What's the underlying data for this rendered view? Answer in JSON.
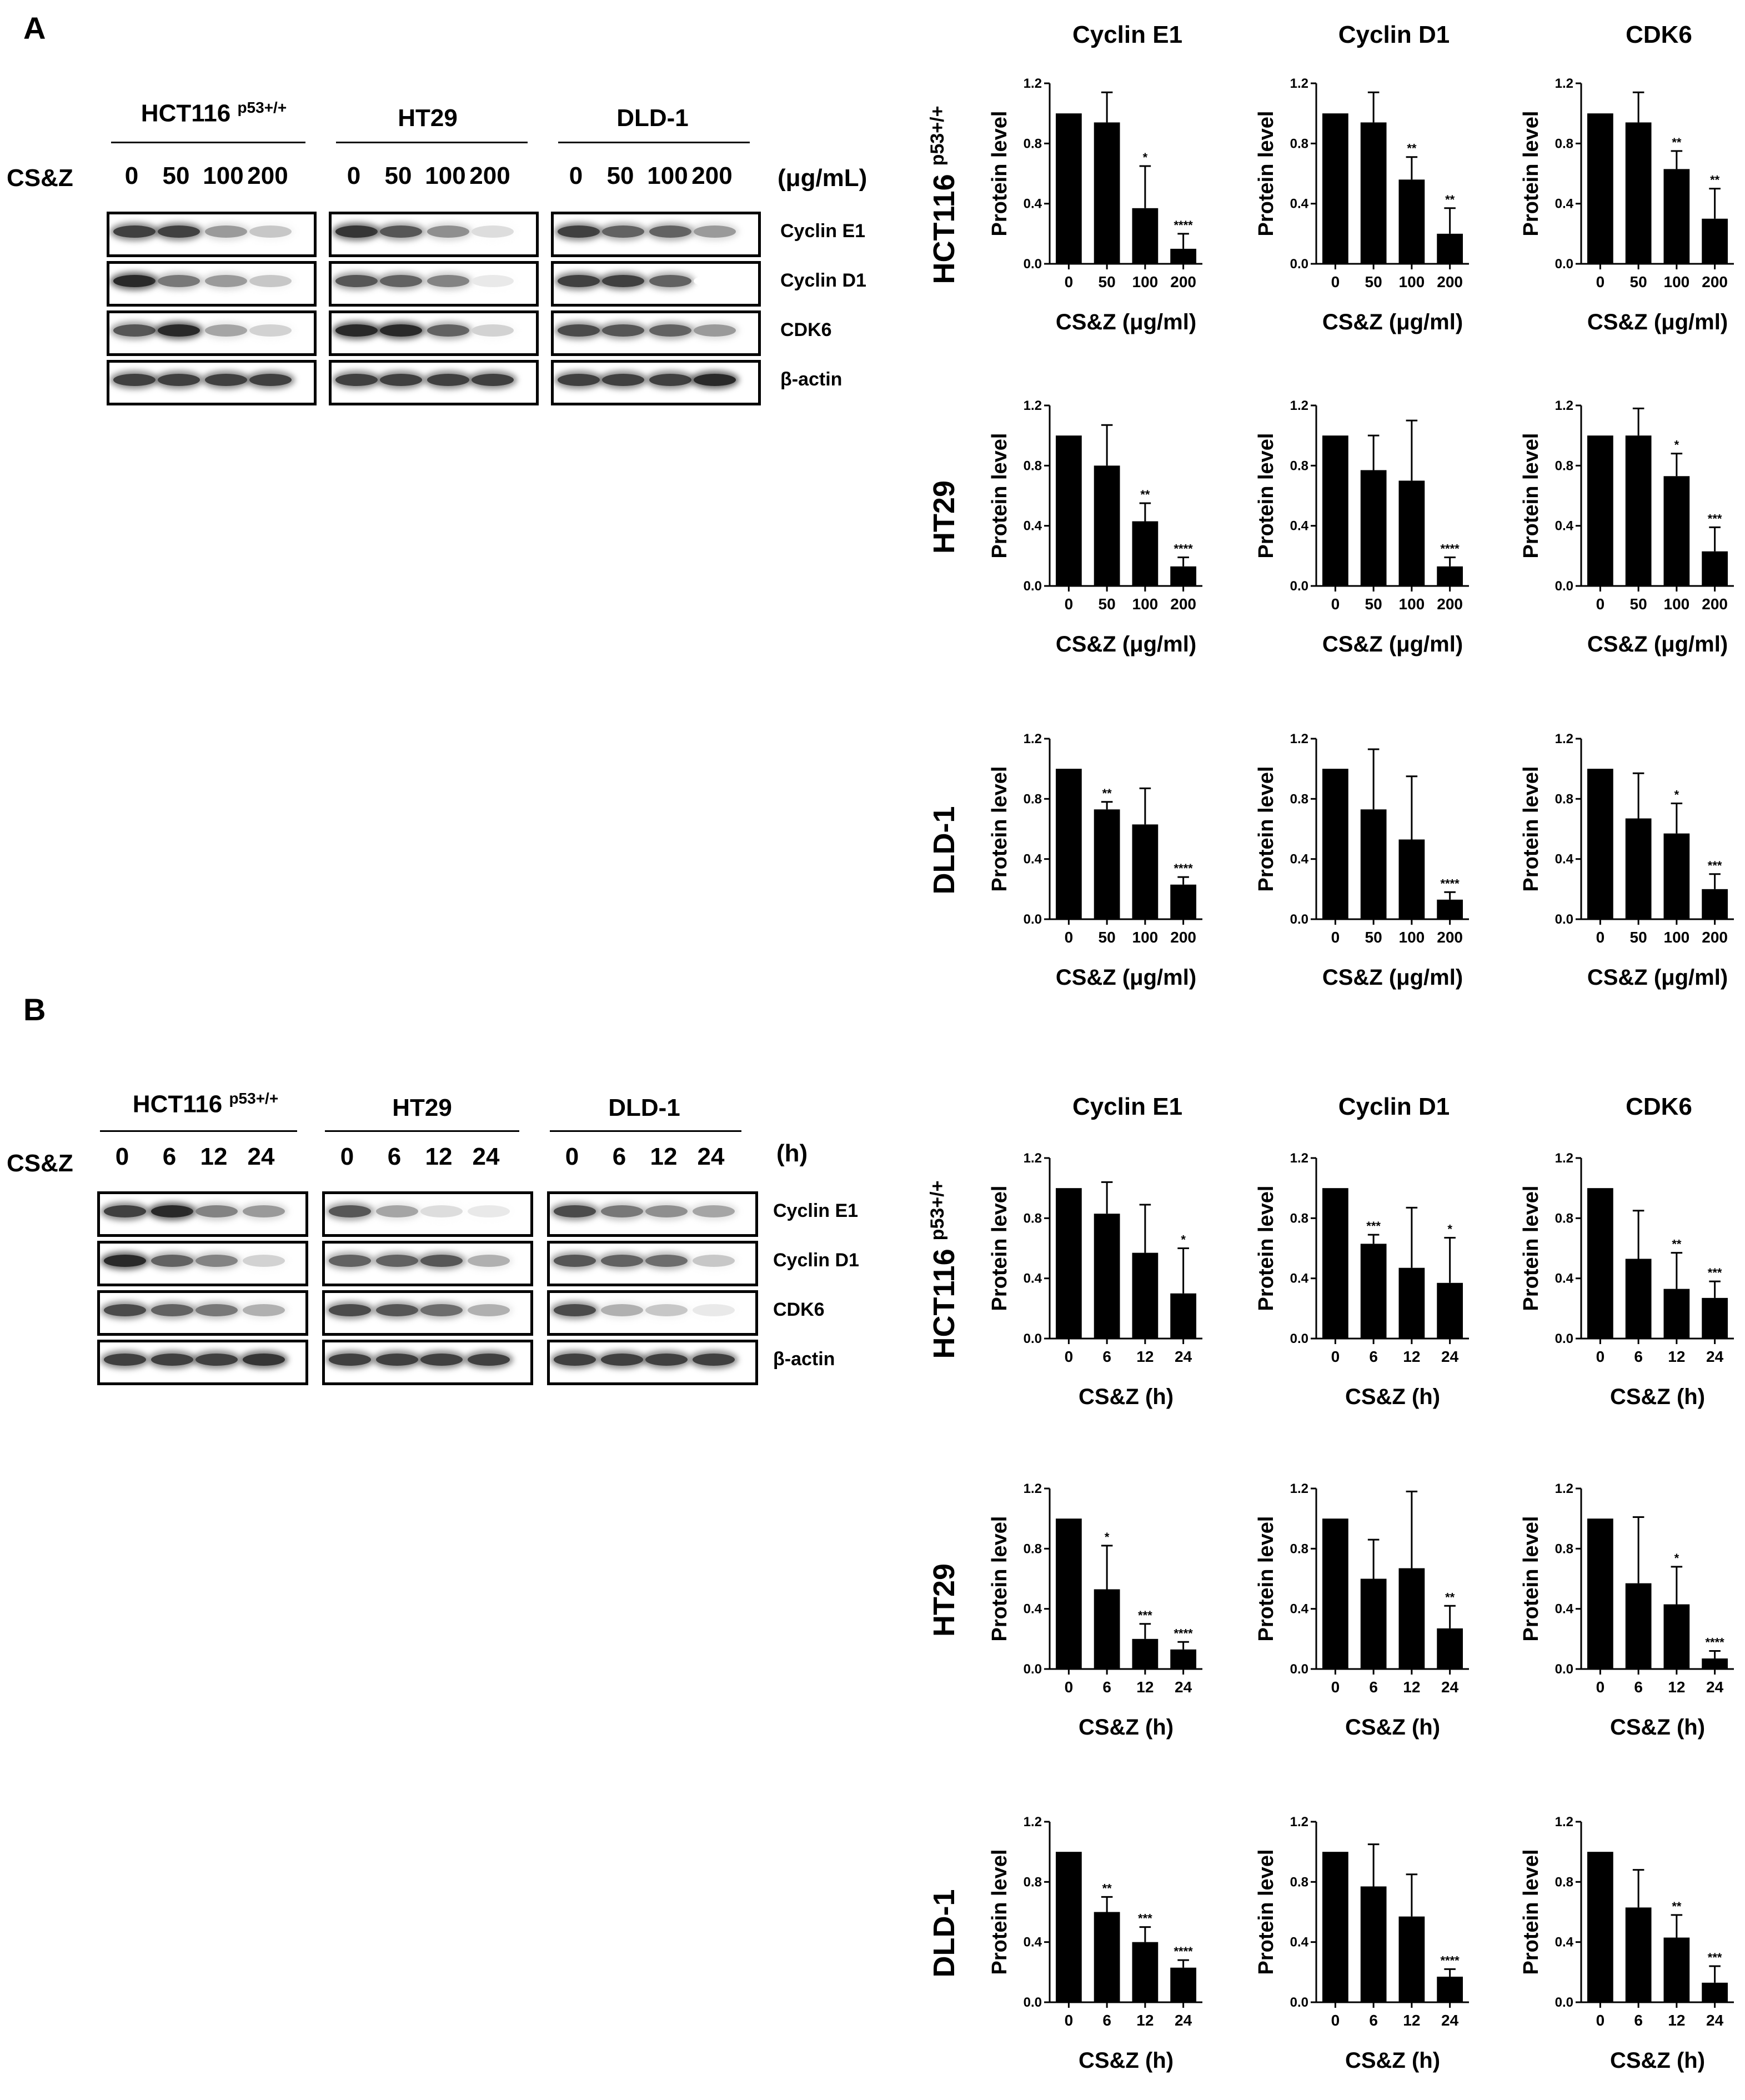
{
  "panel_a": {
    "letter": "A",
    "treatment_label": "CS&Z",
    "unit": "(μg/mL)",
    "cell_lines": [
      {
        "name": "HCT116",
        "superscript": "p53+/+"
      },
      {
        "name": "HT29",
        "superscript": ""
      },
      {
        "name": "DLD-1",
        "superscript": ""
      }
    ],
    "doses": [
      "0",
      "50",
      "100",
      "200"
    ],
    "proteins": [
      "Cyclin E1",
      "Cyclin D1",
      "CDK6",
      "β-actin"
    ],
    "chart_titles": [
      "Cyclin E1",
      "Cyclin D1",
      "CDK6"
    ],
    "row_labels": [
      {
        "name": "HCT116",
        "superscript": "p53+/+"
      },
      {
        "name": "HT29",
        "superscript": ""
      },
      {
        "name": "DLD-1",
        "superscript": ""
      }
    ],
    "blot_intensity": [
      [
        [
          0.85,
          0.85,
          0.45,
          0.25
        ],
        [
          0.95,
          0.6,
          0.45,
          0.25
        ],
        [
          0.75,
          0.95,
          0.4,
          0.2
        ],
        [
          0.85,
          0.85,
          0.85,
          0.85
        ]
      ],
      [
        [
          0.9,
          0.75,
          0.5,
          0.15
        ],
        [
          0.75,
          0.7,
          0.55,
          0.1
        ],
        [
          0.95,
          0.95,
          0.7,
          0.2
        ],
        [
          0.85,
          0.85,
          0.85,
          0.85
        ]
      ],
      [
        [
          0.85,
          0.7,
          0.7,
          0.45
        ],
        [
          0.85,
          0.85,
          0.7,
          0.0
        ],
        [
          0.8,
          0.75,
          0.7,
          0.45
        ],
        [
          0.85,
          0.85,
          0.85,
          0.95
        ]
      ]
    ]
  },
  "panel_b": {
    "letter": "B",
    "treatment_label": "CS&Z",
    "unit": "(h)",
    "cell_lines": [
      {
        "name": "HCT116",
        "superscript": "p53+/+"
      },
      {
        "name": "HT29",
        "superscript": ""
      },
      {
        "name": "DLD-1",
        "superscript": ""
      }
    ],
    "times": [
      "0",
      "6",
      "12",
      "24"
    ],
    "proteins": [
      "Cyclin E1",
      "Cyclin D1",
      "CDK6",
      "β-actin"
    ],
    "chart_titles": [
      "Cyclin E1",
      "Cyclin D1",
      "CDK6"
    ],
    "row_labels": [
      {
        "name": "HCT116",
        "superscript": "p53+/+"
      },
      {
        "name": "HT29",
        "superscript": ""
      },
      {
        "name": "DLD-1",
        "superscript": ""
      }
    ],
    "blot_intensity": [
      [
        [
          0.85,
          0.95,
          0.55,
          0.45
        ],
        [
          0.95,
          0.7,
          0.55,
          0.2
        ],
        [
          0.8,
          0.7,
          0.6,
          0.35
        ],
        [
          0.85,
          0.85,
          0.85,
          0.9
        ]
      ],
      [
        [
          0.75,
          0.4,
          0.15,
          0.1
        ],
        [
          0.7,
          0.7,
          0.75,
          0.35
        ],
        [
          0.8,
          0.75,
          0.65,
          0.35
        ],
        [
          0.85,
          0.85,
          0.85,
          0.85
        ]
      ],
      [
        [
          0.8,
          0.6,
          0.5,
          0.4
        ],
        [
          0.75,
          0.7,
          0.65,
          0.25
        ],
        [
          0.8,
          0.35,
          0.25,
          0.1
        ],
        [
          0.85,
          0.85,
          0.85,
          0.85
        ]
      ]
    ]
  },
  "chart_data": [
    {
      "type": "bar",
      "panel": "A",
      "cell_line": "HCT116 p53+/+",
      "title": "Cyclin E1",
      "xlabel": "CS&Z (μg/ml)",
      "ylabel": "Protein level",
      "categories": [
        "0",
        "50",
        "100",
        "200"
      ],
      "values": [
        1.0,
        0.94,
        0.37,
        0.1
      ],
      "errors": [
        0,
        0.2,
        0.28,
        0.1
      ],
      "significance": [
        "",
        "",
        "*",
        "****"
      ],
      "ylim": [
        0,
        1.2
      ],
      "yticks": [
        "0.0",
        "0.4",
        "0.8",
        "1.2"
      ]
    },
    {
      "type": "bar",
      "panel": "A",
      "cell_line": "HCT116 p53+/+",
      "title": "Cyclin D1",
      "xlabel": "CS&Z (μg/ml)",
      "ylabel": "Protein level",
      "categories": [
        "0",
        "50",
        "100",
        "200"
      ],
      "values": [
        1.0,
        0.94,
        0.56,
        0.2
      ],
      "errors": [
        0,
        0.2,
        0.15,
        0.17
      ],
      "significance": [
        "",
        "",
        "**",
        "**"
      ],
      "ylim": [
        0,
        1.2
      ],
      "yticks": [
        "0.0",
        "0.4",
        "0.8",
        "1.2"
      ]
    },
    {
      "type": "bar",
      "panel": "A",
      "cell_line": "HCT116 p53+/+",
      "title": "CDK6",
      "xlabel": "CS&Z (μg/ml)",
      "ylabel": "Protein level",
      "categories": [
        "0",
        "50",
        "100",
        "200"
      ],
      "values": [
        1.0,
        0.94,
        0.63,
        0.3
      ],
      "errors": [
        0,
        0.2,
        0.12,
        0.2
      ],
      "significance": [
        "",
        "",
        "**",
        "**"
      ],
      "ylim": [
        0,
        1.2
      ],
      "yticks": [
        "0.0",
        "0.4",
        "0.8",
        "1.2"
      ]
    },
    {
      "type": "bar",
      "panel": "A",
      "cell_line": "HT29",
      "title": "Cyclin E1",
      "xlabel": "CS&Z (μg/ml)",
      "ylabel": "Protein level",
      "categories": [
        "0",
        "50",
        "100",
        "200"
      ],
      "values": [
        1.0,
        0.8,
        0.43,
        0.13
      ],
      "errors": [
        0,
        0.27,
        0.12,
        0.06
      ],
      "significance": [
        "",
        "",
        "**",
        "****"
      ],
      "ylim": [
        0,
        1.2
      ],
      "yticks": [
        "0.0",
        "0.4",
        "0.8",
        "1.2"
      ]
    },
    {
      "type": "bar",
      "panel": "A",
      "cell_line": "HT29",
      "title": "Cyclin D1",
      "xlabel": "CS&Z (μg/ml)",
      "ylabel": "Protein level",
      "categories": [
        "0",
        "50",
        "100",
        "200"
      ],
      "values": [
        1.0,
        0.77,
        0.7,
        0.13
      ],
      "errors": [
        0,
        0.23,
        0.4,
        0.06
      ],
      "significance": [
        "",
        "",
        "",
        "****"
      ],
      "ylim": [
        0,
        1.2
      ],
      "yticks": [
        "0.0",
        "0.4",
        "0.8",
        "1.2"
      ]
    },
    {
      "type": "bar",
      "panel": "A",
      "cell_line": "HT29",
      "title": "CDK6",
      "xlabel": "CS&Z (μg/ml)",
      "ylabel": "Protein level",
      "categories": [
        "0",
        "50",
        "100",
        "200"
      ],
      "values": [
        1.0,
        1.0,
        0.73,
        0.23
      ],
      "errors": [
        0,
        0.18,
        0.15,
        0.16
      ],
      "significance": [
        "",
        "",
        "*",
        "***"
      ],
      "ylim": [
        0,
        1.2
      ],
      "yticks": [
        "0.0",
        "0.4",
        "0.8",
        "1.2"
      ]
    },
    {
      "type": "bar",
      "panel": "A",
      "cell_line": "DLD-1",
      "title": "Cyclin E1",
      "xlabel": "CS&Z (μg/ml)",
      "ylabel": "Protein level",
      "categories": [
        "0",
        "50",
        "100",
        "200"
      ],
      "values": [
        1.0,
        0.73,
        0.63,
        0.23
      ],
      "errors": [
        0,
        0.05,
        0.24,
        0.05
      ],
      "significance": [
        "",
        "**",
        "",
        "****"
      ],
      "ylim": [
        0,
        1.2
      ],
      "yticks": [
        "0.0",
        "0.4",
        "0.8",
        "1.2"
      ]
    },
    {
      "type": "bar",
      "panel": "A",
      "cell_line": "DLD-1",
      "title": "Cyclin D1",
      "xlabel": "CS&Z (μg/ml)",
      "ylabel": "Protein level",
      "categories": [
        "0",
        "50",
        "100",
        "200"
      ],
      "values": [
        1.0,
        0.73,
        0.53,
        0.13
      ],
      "errors": [
        0,
        0.4,
        0.42,
        0.05
      ],
      "significance": [
        "",
        "",
        "",
        "****"
      ],
      "ylim": [
        0,
        1.2
      ],
      "yticks": [
        "0.0",
        "0.4",
        "0.8",
        "1.2"
      ]
    },
    {
      "type": "bar",
      "panel": "A",
      "cell_line": "DLD-1",
      "title": "CDK6",
      "xlabel": "CS&Z (μg/ml)",
      "ylabel": "Protein level",
      "categories": [
        "0",
        "50",
        "100",
        "200"
      ],
      "values": [
        1.0,
        0.67,
        0.57,
        0.2
      ],
      "errors": [
        0,
        0.3,
        0.2,
        0.1
      ],
      "significance": [
        "",
        "",
        "*",
        "***"
      ],
      "ylim": [
        0,
        1.2
      ],
      "yticks": [
        "0.0",
        "0.4",
        "0.8",
        "1.2"
      ]
    },
    {
      "type": "bar",
      "panel": "B",
      "cell_line": "HCT116 p53+/+",
      "title": "Cyclin E1",
      "xlabel": "CS&Z (h)",
      "ylabel": "Protein level",
      "categories": [
        "0",
        "6",
        "12",
        "24"
      ],
      "values": [
        1.0,
        0.83,
        0.57,
        0.3
      ],
      "errors": [
        0,
        0.21,
        0.32,
        0.3
      ],
      "significance": [
        "",
        "",
        "",
        "*"
      ],
      "ylim": [
        0,
        1.2
      ],
      "yticks": [
        "0.0",
        "0.4",
        "0.8",
        "1.2"
      ]
    },
    {
      "type": "bar",
      "panel": "B",
      "cell_line": "HCT116 p53+/+",
      "title": "Cyclin D1",
      "xlabel": "CS&Z (h)",
      "ylabel": "Protein level",
      "categories": [
        "0",
        "6",
        "12",
        "24"
      ],
      "values": [
        1.0,
        0.63,
        0.47,
        0.37
      ],
      "errors": [
        0,
        0.06,
        0.4,
        0.3
      ],
      "significance": [
        "",
        "***",
        "",
        "*"
      ],
      "ylim": [
        0,
        1.2
      ],
      "yticks": [
        "0.0",
        "0.4",
        "0.8",
        "1.2"
      ]
    },
    {
      "type": "bar",
      "panel": "B",
      "cell_line": "HCT116 p53+/+",
      "title": "CDK6",
      "xlabel": "CS&Z (h)",
      "ylabel": "Protein level",
      "categories": [
        "0",
        "6",
        "12",
        "24"
      ],
      "values": [
        1.0,
        0.53,
        0.33,
        0.27
      ],
      "errors": [
        0,
        0.32,
        0.24,
        0.11
      ],
      "significance": [
        "",
        "",
        "**",
        "***"
      ],
      "ylim": [
        0,
        1.2
      ],
      "yticks": [
        "0.0",
        "0.4",
        "0.8",
        "1.2"
      ]
    },
    {
      "type": "bar",
      "panel": "B",
      "cell_line": "HT29",
      "title": "Cyclin E1",
      "xlabel": "CS&Z (h)",
      "ylabel": "Protein level",
      "categories": [
        "0",
        "6",
        "12",
        "24"
      ],
      "values": [
        1.0,
        0.53,
        0.2,
        0.13
      ],
      "errors": [
        0,
        0.29,
        0.1,
        0.05
      ],
      "significance": [
        "",
        "*",
        "***",
        "****"
      ],
      "ylim": [
        0,
        1.2
      ],
      "yticks": [
        "0.0",
        "0.4",
        "0.8",
        "1.2"
      ]
    },
    {
      "type": "bar",
      "panel": "B",
      "cell_line": "HT29",
      "title": "Cyclin D1",
      "xlabel": "CS&Z (h)",
      "ylabel": "Protein level",
      "categories": [
        "0",
        "6",
        "12",
        "24"
      ],
      "values": [
        1.0,
        0.6,
        0.67,
        0.27
      ],
      "errors": [
        0,
        0.26,
        0.51,
        0.15
      ],
      "significance": [
        "",
        "",
        "",
        "**"
      ],
      "ylim": [
        0,
        1.2
      ],
      "yticks": [
        "0.0",
        "0.4",
        "0.8",
        "1.2"
      ]
    },
    {
      "type": "bar",
      "panel": "B",
      "cell_line": "HT29",
      "title": "CDK6",
      "xlabel": "CS&Z (h)",
      "ylabel": "Protein level",
      "categories": [
        "0",
        "6",
        "12",
        "24"
      ],
      "values": [
        1.0,
        0.57,
        0.43,
        0.07
      ],
      "errors": [
        0,
        0.44,
        0.25,
        0.05
      ],
      "significance": [
        "",
        "",
        "*",
        "****"
      ],
      "ylim": [
        0,
        1.2
      ],
      "yticks": [
        "0.0",
        "0.4",
        "0.8",
        "1.2"
      ]
    },
    {
      "type": "bar",
      "panel": "B",
      "cell_line": "DLD-1",
      "title": "Cyclin E1",
      "xlabel": "CS&Z (h)",
      "ylabel": "Protein level",
      "categories": [
        "0",
        "6",
        "12",
        "24"
      ],
      "values": [
        1.0,
        0.6,
        0.4,
        0.23
      ],
      "errors": [
        0,
        0.1,
        0.1,
        0.05
      ],
      "significance": [
        "",
        "**",
        "***",
        "****"
      ],
      "ylim": [
        0,
        1.2
      ],
      "yticks": [
        "0.0",
        "0.4",
        "0.8",
        "1.2"
      ]
    },
    {
      "type": "bar",
      "panel": "B",
      "cell_line": "DLD-1",
      "title": "Cyclin D1",
      "xlabel": "CS&Z (h)",
      "ylabel": "Protein level",
      "categories": [
        "0",
        "6",
        "12",
        "24"
      ],
      "values": [
        1.0,
        0.77,
        0.57,
        0.17
      ],
      "errors": [
        0,
        0.28,
        0.28,
        0.05
      ],
      "significance": [
        "",
        "",
        "",
        "****"
      ],
      "ylim": [
        0,
        1.2
      ],
      "yticks": [
        "0.0",
        "0.4",
        "0.8",
        "1.2"
      ]
    },
    {
      "type": "bar",
      "panel": "B",
      "cell_line": "DLD-1",
      "title": "CDK6",
      "xlabel": "CS&Z (h)",
      "ylabel": "Protein level",
      "categories": [
        "0",
        "6",
        "12",
        "24"
      ],
      "values": [
        1.0,
        0.63,
        0.43,
        0.13
      ],
      "errors": [
        0,
        0.25,
        0.15,
        0.11
      ],
      "significance": [
        "",
        "",
        "**",
        "***"
      ],
      "ylim": [
        0,
        1.2
      ],
      "yticks": [
        "0.0",
        "0.4",
        "0.8",
        "1.2"
      ]
    }
  ]
}
